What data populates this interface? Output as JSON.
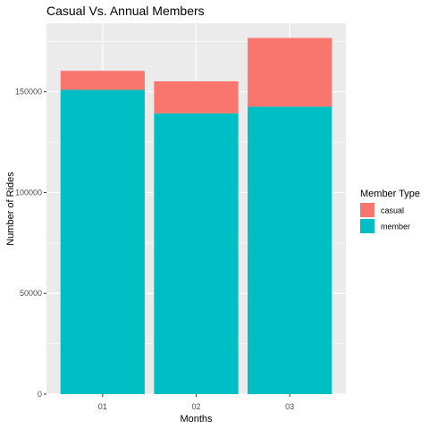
{
  "chart_data": {
    "type": "bar",
    "stacked": true,
    "title": "Casual Vs. Annual Members",
    "xlabel": "Months",
    "ylabel": "Number of Rides",
    "categories": [
      "01",
      "02",
      "03"
    ],
    "series": [
      {
        "name": "casual",
        "color": "#F8766D",
        "values": [
          9400,
          15900,
          34100
        ]
      },
      {
        "name": "member",
        "color": "#00BFC4",
        "values": [
          151000,
          139300,
          142600
        ]
      }
    ],
    "ylim": [
      0,
      184000
    ],
    "yticks": [
      0,
      50000,
      100000,
      150000
    ],
    "ytick_labels": [
      "0",
      "50000",
      "100000",
      "150000"
    ],
    "grid": true,
    "legend": {
      "title": "Member Type",
      "position": "right"
    },
    "colors": {
      "panel_background": "#EBEBEB",
      "gridline": "#FFFFFF"
    }
  }
}
